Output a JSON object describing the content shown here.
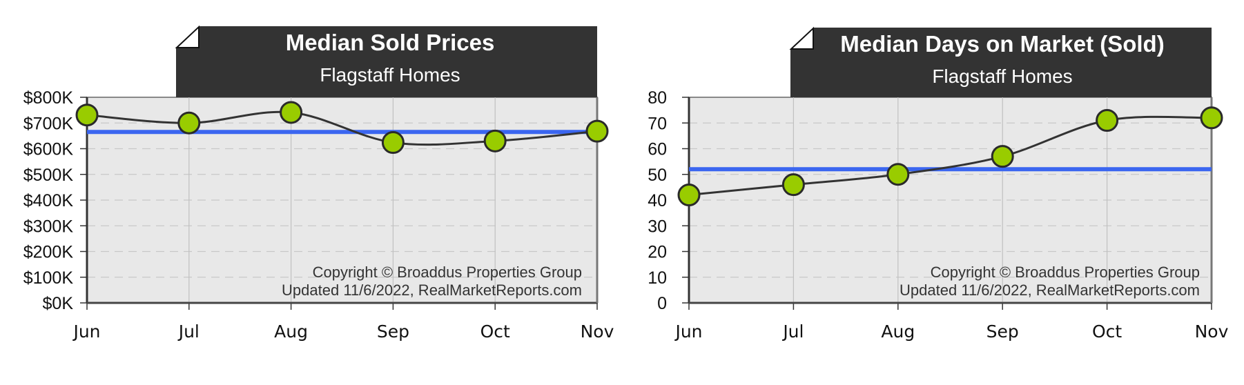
{
  "colors": {
    "plot_bg": "#e8e8e8",
    "header_bg": "#333333",
    "line": "#333333",
    "marker_fill": "#99cc00",
    "marker_stroke": "#2a2a2a",
    "average_line": "#3b66f0",
    "grid": "#c8c8c8"
  },
  "credits": {
    "line1": "Copyright © Broaddus Properties Group",
    "line2": "Updated 11/6/2022, RealMarketReports.com"
  },
  "chart_data": [
    {
      "type": "line",
      "title": "Median Sold Prices",
      "subtitle": "Flagstaff Homes",
      "xlabel": "",
      "ylabel": "",
      "categories": [
        "Jun",
        "Jul",
        "Aug",
        "Sep",
        "Oct",
        "Nov"
      ],
      "series": [
        {
          "name": "Median Sold Price ($K)",
          "values": [
            731,
            700,
            741,
            624,
            630,
            668
          ]
        },
        {
          "name": "Average",
          "values": [
            665,
            665,
            665,
            665,
            665,
            665
          ]
        }
      ],
      "yticks": [
        0,
        100,
        200,
        300,
        400,
        500,
        600,
        700,
        800
      ],
      "ytick_labels": [
        "$0K",
        "$100K",
        "$200K",
        "$300K",
        "$400K",
        "$500K",
        "$600K",
        "$700K",
        "$800K"
      ],
      "ylim": [
        0,
        800
      ],
      "grid": true,
      "legend": "none"
    },
    {
      "type": "line",
      "title": "Median Days on Market (Sold)",
      "subtitle": "Flagstaff Homes",
      "xlabel": "",
      "ylabel": "",
      "categories": [
        "Jun",
        "Jul",
        "Aug",
        "Sep",
        "Oct",
        "Nov"
      ],
      "series": [
        {
          "name": "Median Days on Market",
          "values": [
            42,
            46,
            50,
            57,
            71,
            72
          ]
        },
        {
          "name": "Average",
          "values": [
            52,
            52,
            52,
            52,
            52,
            52
          ]
        }
      ],
      "yticks": [
        0,
        10,
        20,
        30,
        40,
        50,
        60,
        70,
        80
      ],
      "ytick_labels": [
        "0",
        "10",
        "20",
        "30",
        "40",
        "50",
        "60",
        "70",
        "80"
      ],
      "ylim": [
        0,
        80
      ],
      "grid": true,
      "legend": "none"
    }
  ]
}
